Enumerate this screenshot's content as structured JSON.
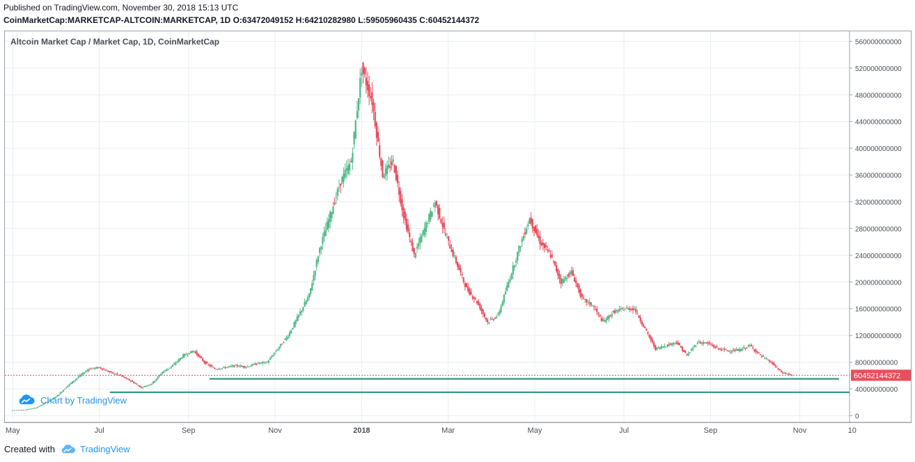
{
  "header": {
    "published": "Published on TradingView.com, November 30, 2018 15:13 UTC",
    "symbol": "CoinMarketCap:MARKETCAP-ALTCOIN:MARKETCAP, 1D",
    "ohlc": "O:63472049152 H:64210282980 L:59505960435 C:60452144372"
  },
  "chart_title": "Altcoin Market Cap / Market Cap, 1D, CoinMarketCap",
  "watermark": "Chart by TradingView",
  "footer": {
    "created": "Created with",
    "brand": "TradingView"
  },
  "colors": {
    "up": "#53b987",
    "down": "#eb4d5c",
    "grid": "#e9eef2",
    "support": "#1a8b7a",
    "price_tag": "#eb4d5c"
  },
  "chart_data": {
    "type": "candlestick",
    "title": "Altcoin Market Cap / Market Cap, 1D, CoinMarketCap",
    "y_axis_position": "right",
    "ylim": [
      -10000000000,
      575000000000
    ],
    "y_ticks": [
      "560000000000",
      "520000000000",
      "480000000000",
      "440000000000",
      "400000000000",
      "360000000000",
      "320000000000",
      "280000000000",
      "240000000000",
      "200000000000",
      "160000000000",
      "120000000000",
      "80000000000",
      "40000000000",
      "0"
    ],
    "x_ticks": [
      "May",
      "Jul",
      "Sep",
      "Nov",
      "2018",
      "Mar",
      "May",
      "Jul",
      "Sep",
      "Nov",
      "10"
    ],
    "last_price_label": "60452144372",
    "last_close": 60452144372,
    "grid": true,
    "series": [
      {
        "values": [
          [
            2017.33,
            8000000000
          ],
          [
            2017.36,
            9000000000
          ],
          [
            2017.38,
            12000000000
          ],
          [
            2017.4,
            20000000000
          ],
          [
            2017.42,
            30000000000
          ],
          [
            2017.44,
            45000000000
          ],
          [
            2017.46,
            58000000000
          ],
          [
            2017.48,
            70000000000
          ],
          [
            2017.5,
            72000000000
          ],
          [
            2017.52,
            65000000000
          ],
          [
            2017.54,
            60000000000
          ],
          [
            2017.56,
            52000000000
          ],
          [
            2017.58,
            42000000000
          ],
          [
            2017.6,
            48000000000
          ],
          [
            2017.62,
            65000000000
          ],
          [
            2017.64,
            75000000000
          ],
          [
            2017.66,
            90000000000
          ],
          [
            2017.68,
            97000000000
          ],
          [
            2017.7,
            80000000000
          ],
          [
            2017.72,
            70000000000
          ],
          [
            2017.74,
            72000000000
          ],
          [
            2017.76,
            75000000000
          ],
          [
            2017.78,
            73000000000
          ],
          [
            2017.8,
            78000000000
          ],
          [
            2017.82,
            80000000000
          ],
          [
            2017.84,
            100000000000
          ],
          [
            2017.86,
            120000000000
          ],
          [
            2017.88,
            150000000000
          ],
          [
            2017.9,
            180000000000
          ],
          [
            2017.92,
            250000000000
          ],
          [
            2017.94,
            300000000000
          ],
          [
            2017.96,
            350000000000
          ],
          [
            2017.98,
            380000000000
          ],
          [
            2018.0,
            520000000000
          ],
          [
            2018.02,
            470000000000
          ],
          [
            2018.04,
            360000000000
          ],
          [
            2018.06,
            380000000000
          ],
          [
            2018.08,
            300000000000
          ],
          [
            2018.1,
            240000000000
          ],
          [
            2018.12,
            280000000000
          ],
          [
            2018.14,
            320000000000
          ],
          [
            2018.16,
            270000000000
          ],
          [
            2018.18,
            230000000000
          ],
          [
            2018.2,
            190000000000
          ],
          [
            2018.22,
            170000000000
          ],
          [
            2018.24,
            140000000000
          ],
          [
            2018.26,
            150000000000
          ],
          [
            2018.28,
            200000000000
          ],
          [
            2018.3,
            250000000000
          ],
          [
            2018.32,
            295000000000
          ],
          [
            2018.34,
            260000000000
          ],
          [
            2018.36,
            240000000000
          ],
          [
            2018.38,
            200000000000
          ],
          [
            2018.4,
            215000000000
          ],
          [
            2018.42,
            175000000000
          ],
          [
            2018.44,
            165000000000
          ],
          [
            2018.46,
            140000000000
          ],
          [
            2018.48,
            155000000000
          ],
          [
            2018.5,
            160000000000
          ],
          [
            2018.52,
            160000000000
          ],
          [
            2018.54,
            130000000000
          ],
          [
            2018.56,
            100000000000
          ],
          [
            2018.58,
            105000000000
          ],
          [
            2018.6,
            110000000000
          ],
          [
            2018.62,
            90000000000
          ],
          [
            2018.64,
            110000000000
          ],
          [
            2018.66,
            108000000000
          ],
          [
            2018.68,
            100000000000
          ],
          [
            2018.7,
            97000000000
          ],
          [
            2018.72,
            98000000000
          ],
          [
            2018.74,
            105000000000
          ],
          [
            2018.76,
            90000000000
          ],
          [
            2018.78,
            80000000000
          ],
          [
            2018.8,
            65000000000
          ],
          [
            2018.82,
            60452144372
          ]
        ]
      }
    ],
    "support_lines": [
      55000000000,
      35000000000
    ]
  }
}
